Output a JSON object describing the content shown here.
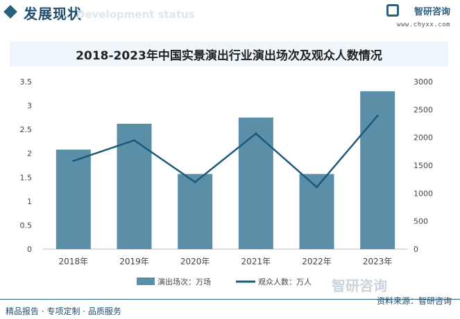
{
  "header": {
    "title": "发展现状",
    "subtitle": "Development status"
  },
  "brand": {
    "name": "智研咨询",
    "url": "www.chyxx.com"
  },
  "chart_data": {
    "type": "bar+line",
    "title": "2018-2023年中国实景演出行业演出场次及观众人数情况",
    "categories": [
      "2018年",
      "2019年",
      "2020年",
      "2021年",
      "2022年",
      "2023年"
    ],
    "series": [
      {
        "name": "演出场次：万场",
        "type": "bar",
        "axis": "left",
        "values": [
          2.08,
          2.62,
          1.57,
          2.75,
          1.57,
          3.3
        ],
        "color": "#5b8fa8"
      },
      {
        "name": "观众人数：万人",
        "type": "line",
        "axis": "right",
        "values": [
          1580,
          1950,
          1200,
          2070,
          1110,
          2390
        ],
        "color": "#1a5a78"
      }
    ],
    "y_left": {
      "min": 0,
      "max": 3.5,
      "ticks": [
        "0",
        "0.5",
        "1",
        "1.5",
        "2",
        "2.5",
        "3",
        "3.5"
      ]
    },
    "y_right": {
      "min": 0,
      "max": 3000,
      "ticks": [
        "0",
        "500",
        "1000",
        "1500",
        "2000",
        "2500",
        "3000"
      ]
    },
    "grid": false,
    "legend": "bottom"
  },
  "footer": {
    "left": "精品报告 · 专项定制 · 品质服务",
    "right": "资料来源：智研咨询"
  }
}
